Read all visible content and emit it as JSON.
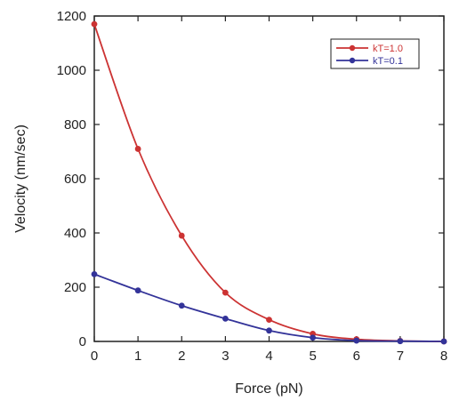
{
  "chart_data": {
    "type": "line",
    "xlabel": "Force (pN)",
    "ylabel": "Velocity (nm/sec)",
    "xlim": [
      0,
      8
    ],
    "ylim": [
      0,
      1200
    ],
    "xticks": [
      0,
      1,
      2,
      3,
      4,
      5,
      6,
      7,
      8
    ],
    "yticks": [
      0,
      200,
      400,
      600,
      800,
      1000,
      1200
    ],
    "grid": false,
    "legend_position": "top-right",
    "series": [
      {
        "name": "kT=1.0",
        "color": "#cc3333",
        "x": [
          0,
          1,
          2,
          3,
          4,
          5,
          6,
          7,
          8
        ],
        "y": [
          1170,
          710,
          390,
          180,
          80,
          28,
          8,
          2,
          0
        ]
      },
      {
        "name": "kT=0.1",
        "color": "#333399",
        "x": [
          0,
          1,
          2,
          3,
          4,
          5,
          6,
          7,
          8
        ],
        "y": [
          248,
          188,
          132,
          84,
          40,
          14,
          3,
          1,
          0
        ]
      }
    ]
  }
}
